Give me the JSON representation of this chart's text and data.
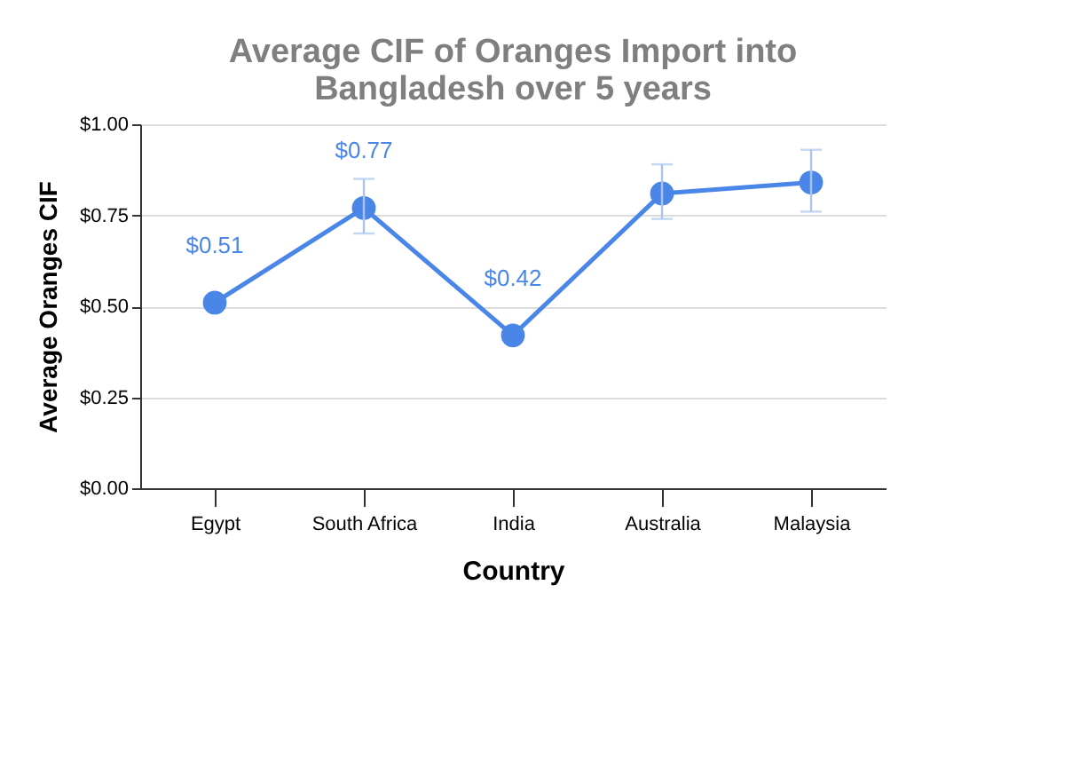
{
  "chart_data": {
    "type": "line",
    "title": "Average CIF of Oranges Import into Bangladesh over 5 years",
    "xlabel": "Country",
    "ylabel": "Average Oranges CIF",
    "categories": [
      "Egypt",
      "South Africa",
      "India",
      "Australia",
      "Malaysia"
    ],
    "series": [
      {
        "color": "#4a86e8",
        "values": [
          0.51,
          0.77,
          0.42,
          0.81,
          0.84
        ],
        "errors": [
          null,
          [
            0.7,
            0.85
          ],
          null,
          [
            0.74,
            0.89
          ],
          [
            0.76,
            0.93
          ]
        ],
        "value_labels": [
          "$0.51",
          "$0.77",
          "$0.42",
          null,
          null
        ]
      }
    ],
    "ylim": [
      0,
      1
    ],
    "yticks": [
      {
        "value": 0,
        "label": "$0.00"
      },
      {
        "value": 0.25,
        "label": "$0.25"
      },
      {
        "value": 0.5,
        "label": "$0.50"
      },
      {
        "value": 0.75,
        "label": "$0.75"
      },
      {
        "value": 1,
        "label": "$1.00"
      }
    ],
    "grid": "y",
    "marker": "circle",
    "line_style": "solid"
  }
}
